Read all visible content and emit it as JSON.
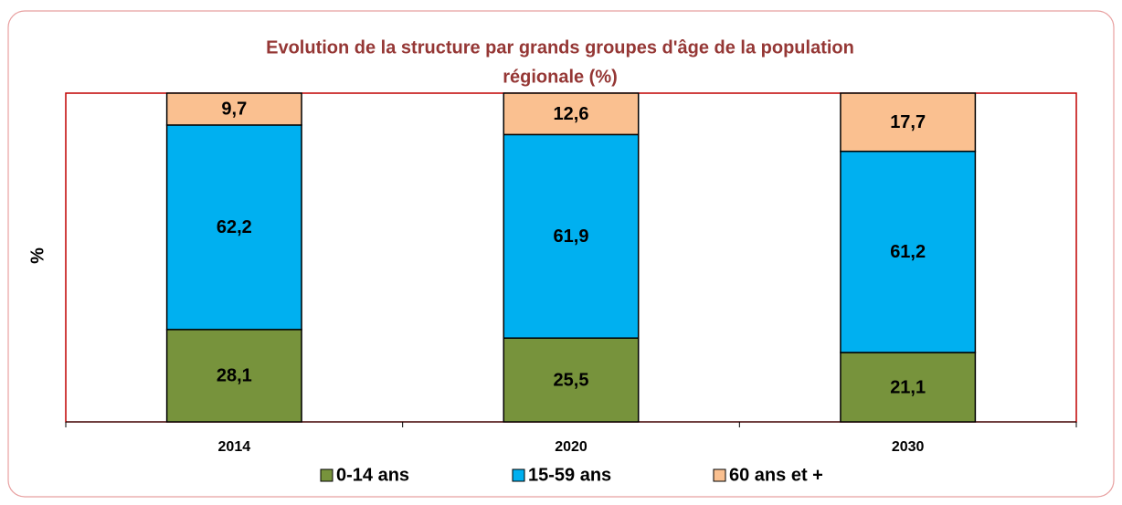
{
  "chart_data": {
    "type": "stacked_bar",
    "title": "Evolution de la structure  par grands groupes d'âge de la population",
    "subtitle": "régionale (%)",
    "y_label": "%",
    "categories": [
      "2014",
      "2020",
      "2030"
    ],
    "series": [
      {
        "name": "0-14 ans",
        "color": "#77933c",
        "values": [
          28.1,
          25.5,
          21.1
        ],
        "value_labels": [
          "28,1",
          "25,5",
          "21,1"
        ]
      },
      {
        "name": "15-59 ans",
        "color": "#00b0f0",
        "values": [
          62.2,
          61.9,
          61.2
        ],
        "value_labels": [
          "62,2",
          "61,9",
          "61,2"
        ]
      },
      {
        "name": "60 ans et +",
        "color": "#fac090",
        "values": [
          9.7,
          12.6,
          17.7
        ],
        "value_labels": [
          "9,7",
          "12,6",
          "17,7"
        ]
      }
    ],
    "ylim": [
      0,
      100
    ]
  }
}
